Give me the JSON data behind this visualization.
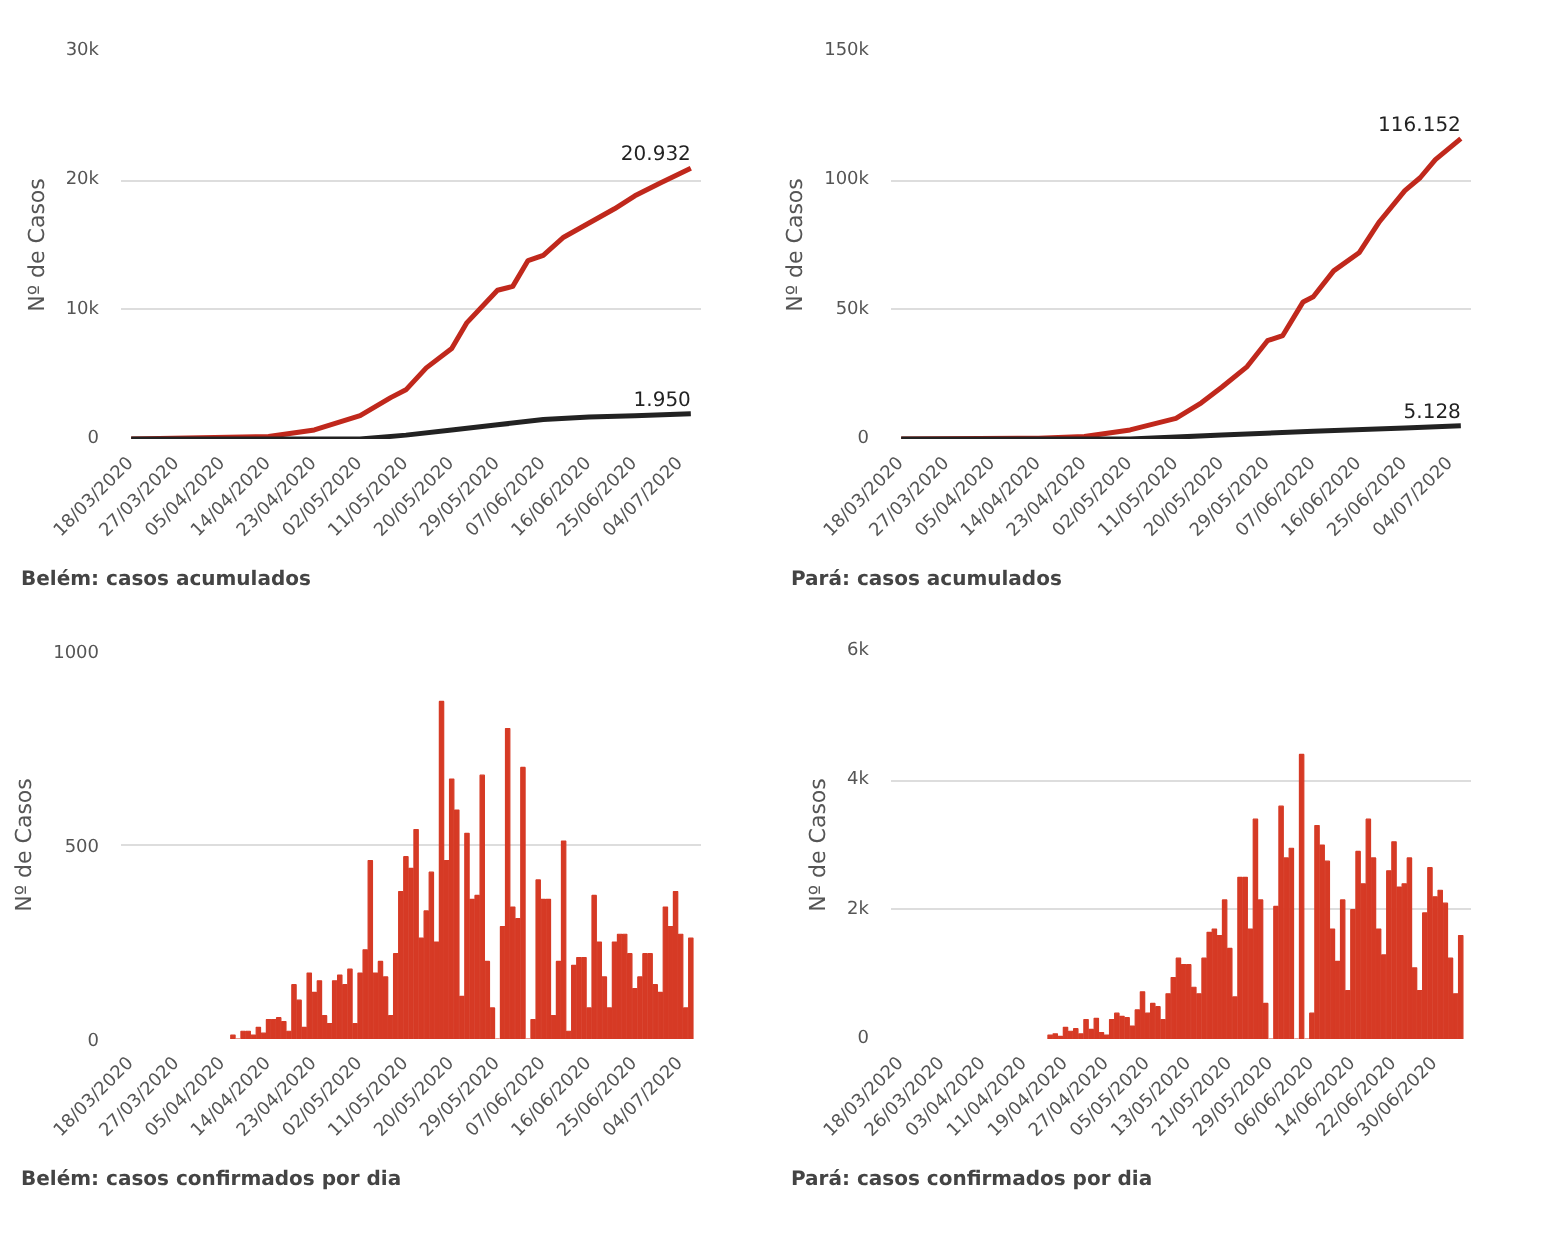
{
  "chart_data": [
    {
      "type": "line",
      "title": "Belém: casos acumulados",
      "ylabel": "Nº de Casos",
      "grid": "y",
      "xlim": [
        "2020-03-16",
        "2020-07-08"
      ],
      "ylim": [
        0,
        30000
      ],
      "xticks": [
        {
          "value": "2020-03-18",
          "label": "18/03/2020"
        },
        {
          "value": "2020-03-27",
          "label": "27/03/2020"
        },
        {
          "value": "2020-04-05",
          "label": "05/04/2020"
        },
        {
          "value": "2020-04-14",
          "label": "14/04/2020"
        },
        {
          "value": "2020-04-23",
          "label": "23/04/2020"
        },
        {
          "value": "2020-05-02",
          "label": "02/05/2020"
        },
        {
          "value": "2020-05-11",
          "label": "11/05/2020"
        },
        {
          "value": "2020-05-20",
          "label": "20/05/2020"
        },
        {
          "value": "2020-05-29",
          "label": "29/05/2020"
        },
        {
          "value": "2020-06-07",
          "label": "07/06/2020"
        },
        {
          "value": "2020-06-16",
          "label": "16/06/2020"
        },
        {
          "value": "2020-06-25",
          "label": "25/06/2020"
        },
        {
          "value": "2020-07-04",
          "label": "04/07/2020"
        }
      ],
      "yticks": [
        0,
        {
          "value": 10000,
          "label": "10k"
        },
        {
          "value": 20000,
          "label": "20k"
        },
        {
          "value": 30000,
          "label": "30k"
        }
      ],
      "series": [
        {
          "color": "#c0281c",
          "x": [
            "2020-03-18",
            "2020-04-14",
            "2020-04-23",
            "2020-05-02",
            "2020-05-08",
            "2020-05-11",
            "2020-05-15",
            "2020-05-20",
            "2020-05-23",
            "2020-05-29",
            "2020-06-01",
            "2020-06-04",
            "2020-06-07",
            "2020-06-11",
            "2020-06-16",
            "2020-06-21",
            "2020-06-25",
            "2020-06-30",
            "2020-07-06"
          ],
          "values": [
            0,
            200,
            700,
            1800,
            3200,
            3800,
            5500,
            7000,
            9000,
            11500,
            11800,
            13800,
            14200,
            15600,
            16700,
            17800,
            18800,
            19800,
            20932
          ]
        },
        {
          "color": "#222222",
          "x": [
            "2020-03-18",
            "2020-04-23",
            "2020-05-02",
            "2020-05-11",
            "2020-05-20",
            "2020-05-29",
            "2020-06-07",
            "2020-06-16",
            "2020-06-25",
            "2020-07-06"
          ],
          "values": [
            0,
            0,
            0,
            300,
            700,
            1100,
            1500,
            1700,
            1800,
            1950
          ]
        }
      ],
      "annotations": [
        {
          "text": "20.932",
          "x": "2020-07-06",
          "y": 20932
        },
        {
          "text": "1.950",
          "x": "2020-07-06",
          "y": 1950
        }
      ]
    },
    {
      "type": "line",
      "title": "Pará: casos acumulados",
      "ylabel": "Nº de Casos",
      "grid": "y",
      "xlim": [
        "2020-03-16",
        "2020-07-08"
      ],
      "ylim": [
        0,
        150000
      ],
      "xticks": [
        {
          "value": "2020-03-18",
          "label": "18/03/2020"
        },
        {
          "value": "2020-03-27",
          "label": "27/03/2020"
        },
        {
          "value": "2020-04-05",
          "label": "05/04/2020"
        },
        {
          "value": "2020-04-14",
          "label": "14/04/2020"
        },
        {
          "value": "2020-04-23",
          "label": "23/04/2020"
        },
        {
          "value": "2020-05-02",
          "label": "02/05/2020"
        },
        {
          "value": "2020-05-11",
          "label": "11/05/2020"
        },
        {
          "value": "2020-05-20",
          "label": "20/05/2020"
        },
        {
          "value": "2020-05-29",
          "label": "29/05/2020"
        },
        {
          "value": "2020-06-07",
          "label": "07/06/2020"
        },
        {
          "value": "2020-06-16",
          "label": "16/06/2020"
        },
        {
          "value": "2020-06-25",
          "label": "25/06/2020"
        },
        {
          "value": "2020-07-04",
          "label": "04/07/2020"
        }
      ],
      "yticks": [
        0,
        {
          "value": 50000,
          "label": "50k"
        },
        {
          "value": 100000,
          "label": "100k"
        },
        {
          "value": 150000,
          "label": "150k"
        }
      ],
      "series": [
        {
          "color": "#c0281c",
          "x": [
            "2020-03-18",
            "2020-04-14",
            "2020-04-23",
            "2020-05-02",
            "2020-05-11",
            "2020-05-16",
            "2020-05-20",
            "2020-05-25",
            "2020-05-29",
            "2020-06-01",
            "2020-06-05",
            "2020-06-07",
            "2020-06-11",
            "2020-06-16",
            "2020-06-20",
            "2020-06-25",
            "2020-06-28",
            "2020-07-01",
            "2020-07-06"
          ],
          "values": [
            0,
            300,
            1000,
            3500,
            8000,
            14000,
            20000,
            28000,
            38000,
            40000,
            53000,
            55000,
            65000,
            72000,
            84000,
            96000,
            101000,
            108000,
            116152
          ]
        },
        {
          "color": "#222222",
          "x": [
            "2020-03-18",
            "2020-04-23",
            "2020-05-02",
            "2020-05-20",
            "2020-06-07",
            "2020-06-25",
            "2020-07-06"
          ],
          "values": [
            0,
            0,
            0,
            1500,
            3000,
            4300,
            5128
          ]
        }
      ],
      "annotations": [
        {
          "text": "116.152",
          "x": "2020-07-06",
          "y": 116152
        },
        {
          "text": "5.128",
          "x": "2020-07-06",
          "y": 5128
        }
      ]
    },
    {
      "type": "bar",
      "title": "Belém: casos confirmados por dia",
      "ylabel": "Nº de Casos",
      "grid": "y",
      "color": "#d63a25",
      "xlim": [
        "2020-03-16",
        "2020-07-08"
      ],
      "ylim": [
        0,
        1000
      ],
      "xticks": [
        {
          "value": "2020-03-18",
          "label": "18/03/2020"
        },
        {
          "value": "2020-03-27",
          "label": "27/03/2020"
        },
        {
          "value": "2020-04-05",
          "label": "05/04/2020"
        },
        {
          "value": "2020-04-14",
          "label": "14/04/2020"
        },
        {
          "value": "2020-04-23",
          "label": "23/04/2020"
        },
        {
          "value": "2020-05-02",
          "label": "02/05/2020"
        },
        {
          "value": "2020-05-11",
          "label": "11/05/2020"
        },
        {
          "value": "2020-05-20",
          "label": "20/05/2020"
        },
        {
          "value": "2020-05-29",
          "label": "29/05/2020"
        },
        {
          "value": "2020-06-07",
          "label": "07/06/2020"
        },
        {
          "value": "2020-06-16",
          "label": "16/06/2020"
        },
        {
          "value": "2020-06-25",
          "label": "25/06/2020"
        },
        {
          "value": "2020-07-04",
          "label": "04/07/2020"
        }
      ],
      "yticks": [
        0,
        500,
        1000
      ],
      "x": [
        "2020-04-07",
        "2020-04-08",
        "2020-04-09",
        "2020-04-10",
        "2020-04-11",
        "2020-04-12",
        "2020-04-13",
        "2020-04-14",
        "2020-04-15",
        "2020-04-16",
        "2020-04-17",
        "2020-04-18",
        "2020-04-19",
        "2020-04-20",
        "2020-04-21",
        "2020-04-22",
        "2020-04-23",
        "2020-04-24",
        "2020-04-25",
        "2020-04-26",
        "2020-04-27",
        "2020-04-28",
        "2020-04-29",
        "2020-04-30",
        "2020-05-01",
        "2020-05-02",
        "2020-05-03",
        "2020-05-04",
        "2020-05-05",
        "2020-05-06",
        "2020-05-07",
        "2020-05-08",
        "2020-05-09",
        "2020-05-10",
        "2020-05-11",
        "2020-05-12",
        "2020-05-13",
        "2020-05-14",
        "2020-05-15",
        "2020-05-16",
        "2020-05-17",
        "2020-05-18",
        "2020-05-19",
        "2020-05-20",
        "2020-05-21",
        "2020-05-22",
        "2020-05-23",
        "2020-05-24",
        "2020-05-25",
        "2020-05-26",
        "2020-05-27",
        "2020-05-28",
        "2020-05-29",
        "2020-05-30",
        "2020-05-31",
        "2020-06-01",
        "2020-06-02",
        "2020-06-03",
        "2020-06-04",
        "2020-06-05",
        "2020-06-06",
        "2020-06-07",
        "2020-06-08",
        "2020-06-09",
        "2020-06-10",
        "2020-06-11",
        "2020-06-12",
        "2020-06-13",
        "2020-06-14",
        "2020-06-15",
        "2020-06-16",
        "2020-06-17",
        "2020-06-18",
        "2020-06-19",
        "2020-06-20",
        "2020-06-21",
        "2020-06-22",
        "2020-06-23",
        "2020-06-24",
        "2020-06-25",
        "2020-06-26",
        "2020-06-27",
        "2020-06-28",
        "2020-06-29",
        "2020-06-30",
        "2020-07-01",
        "2020-07-02",
        "2020-07-03",
        "2020-07-04",
        "2020-07-05",
        "2020-07-06"
      ],
      "values": [
        10,
        0,
        20,
        20,
        10,
        30,
        15,
        50,
        50,
        55,
        45,
        20,
        140,
        100,
        30,
        170,
        120,
        150,
        60,
        40,
        150,
        165,
        140,
        180,
        40,
        170,
        230,
        460,
        170,
        200,
        160,
        60,
        220,
        380,
        470,
        440,
        540,
        260,
        330,
        430,
        250,
        870,
        460,
        670,
        590,
        110,
        530,
        360,
        370,
        680,
        200,
        80,
        0,
        290,
        800,
        340,
        310,
        700,
        0,
        50,
        410,
        360,
        360,
        60,
        200,
        510,
        20,
        190,
        210,
        210,
        80,
        370,
        250,
        160,
        80,
        250,
        270,
        270,
        220,
        130,
        160,
        220,
        220,
        140,
        120,
        340,
        290,
        380,
        270,
        80,
        260
      ]
    },
    {
      "type": "bar",
      "title": "Pará: casos confirmados por dia",
      "ylabel": "Nº de Casos",
      "grid": "y",
      "color": "#d63a25",
      "xlim": [
        "2020-03-16",
        "2020-07-07"
      ],
      "ylim": [
        0,
        6000
      ],
      "xticks": [
        {
          "value": "2020-03-18",
          "label": "18/03/2020"
        },
        {
          "value": "2020-03-26",
          "label": "26/03/2020"
        },
        {
          "value": "2020-04-03",
          "label": "03/04/2020"
        },
        {
          "value": "2020-04-11",
          "label": "11/04/2020"
        },
        {
          "value": "2020-04-19",
          "label": "19/04/2020"
        },
        {
          "value": "2020-04-27",
          "label": "27/04/2020"
        },
        {
          "value": "2020-05-05",
          "label": "05/05/2020"
        },
        {
          "value": "2020-05-13",
          "label": "13/05/2020"
        },
        {
          "value": "2020-05-21",
          "label": "21/05/2020"
        },
        {
          "value": "2020-05-29",
          "label": "29/05/2020"
        },
        {
          "value": "2020-06-06",
          "label": "06/06/2020"
        },
        {
          "value": "2020-06-14",
          "label": "14/06/2020"
        },
        {
          "value": "2020-06-22",
          "label": "22/06/2020"
        },
        {
          "value": "2020-06-30",
          "label": "30/06/2020"
        }
      ],
      "yticks": [
        0,
        {
          "value": 2000,
          "label": "2k"
        },
        {
          "value": 4000,
          "label": "4k"
        },
        {
          "value": 6000,
          "label": "6k"
        }
      ],
      "x": [
        "2020-04-16",
        "2020-04-17",
        "2020-04-18",
        "2020-04-19",
        "2020-04-20",
        "2020-04-21",
        "2020-04-22",
        "2020-04-23",
        "2020-04-24",
        "2020-04-25",
        "2020-04-26",
        "2020-04-27",
        "2020-04-28",
        "2020-04-29",
        "2020-04-30",
        "2020-05-01",
        "2020-05-02",
        "2020-05-03",
        "2020-05-04",
        "2020-05-05",
        "2020-05-06",
        "2020-05-07",
        "2020-05-08",
        "2020-05-09",
        "2020-05-10",
        "2020-05-11",
        "2020-05-12",
        "2020-05-13",
        "2020-05-14",
        "2020-05-15",
        "2020-05-16",
        "2020-05-17",
        "2020-05-18",
        "2020-05-19",
        "2020-05-20",
        "2020-05-21",
        "2020-05-22",
        "2020-05-23",
        "2020-05-24",
        "2020-05-25",
        "2020-05-26",
        "2020-05-27",
        "2020-05-28",
        "2020-05-29",
        "2020-05-30",
        "2020-05-31",
        "2020-06-01",
        "2020-06-02",
        "2020-06-03",
        "2020-06-04",
        "2020-06-05",
        "2020-06-06",
        "2020-06-07",
        "2020-06-08",
        "2020-06-09",
        "2020-06-10",
        "2020-06-11",
        "2020-06-12",
        "2020-06-13",
        "2020-06-14",
        "2020-06-15",
        "2020-06-16",
        "2020-06-17",
        "2020-06-18",
        "2020-06-19",
        "2020-06-20",
        "2020-06-21",
        "2020-06-22",
        "2020-06-23",
        "2020-06-24",
        "2020-06-25",
        "2020-06-26",
        "2020-06-27",
        "2020-06-28",
        "2020-06-29",
        "2020-06-30",
        "2020-07-01",
        "2020-07-02",
        "2020-07-03",
        "2020-07-04",
        "2020-07-05"
      ],
      "values": [
        60,
        80,
        40,
        180,
        120,
        160,
        80,
        300,
        150,
        320,
        100,
        60,
        300,
        400,
        350,
        330,
        200,
        450,
        730,
        400,
        550,
        500,
        300,
        700,
        950,
        1250,
        1150,
        1150,
        800,
        700,
        1250,
        1650,
        1700,
        1600,
        2150,
        1400,
        650,
        2500,
        2500,
        1700,
        3400,
        2150,
        550,
        0,
        2050,
        3600,
        2800,
        2950,
        0,
        4400,
        0,
        400,
        3300,
        3000,
        2750,
        1700,
        1200,
        2150,
        750,
        2000,
        2900,
        2400,
        3400,
        2800,
        1700,
        1300,
        2600,
        3050,
        2350,
        2400,
        2800,
        1100,
        750,
        1950,
        2650,
        2200,
        2300,
        2100,
        1250,
        700,
        1600
      ]
    }
  ]
}
